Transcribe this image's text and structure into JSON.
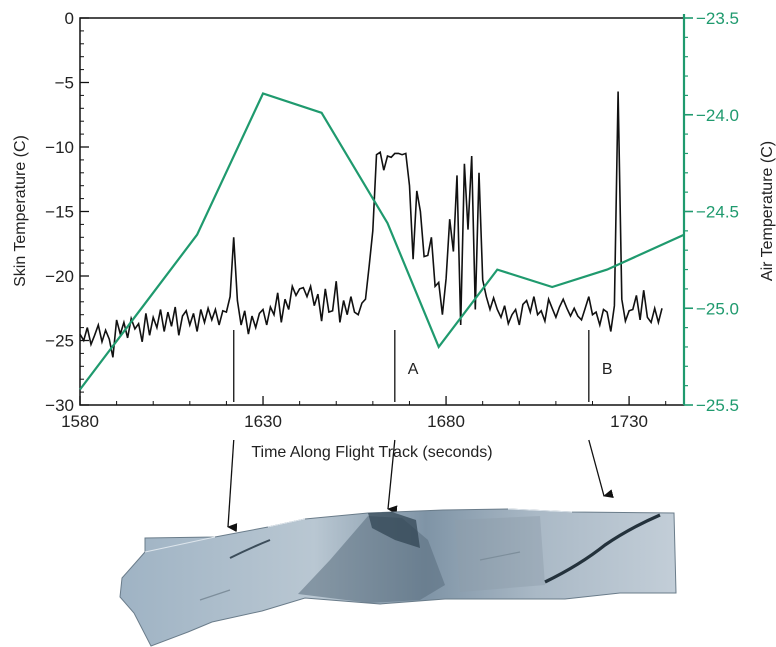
{
  "chart_data": {
    "type": "line",
    "xlabel": "Time Along Flight Track (seconds)",
    "ylabel": "Skin Temperature (C)",
    "y2label": "Air Temperature (C)",
    "xlim": [
      1580,
      1745
    ],
    "ylim": [
      -30,
      0
    ],
    "y2lim": [
      -25.5,
      -23.5
    ],
    "x_ticks": [
      "1580",
      "1630",
      "1680",
      "1730"
    ],
    "y_ticks": [
      "0",
      "−5",
      "−10",
      "−15",
      "−20",
      "−25",
      "−30"
    ],
    "y2_ticks": [
      "−23.5",
      "−24.0",
      "−24.5",
      "−25.0",
      "−25.5"
    ],
    "grid": false,
    "series": [
      {
        "axis": "left",
        "color": "#111111",
        "x": [
          1580,
          1581,
          1582,
          1583,
          1584,
          1585,
          1586,
          1587,
          1588,
          1589,
          1590,
          1591,
          1592,
          1593,
          1594,
          1595,
          1596,
          1597,
          1598,
          1599,
          1600,
          1601,
          1602,
          1603,
          1604,
          1605,
          1606,
          1607,
          1608,
          1609,
          1610,
          1611,
          1612,
          1613,
          1614,
          1615,
          1616,
          1617,
          1618,
          1619,
          1620,
          1621,
          1622,
          1623,
          1624,
          1625,
          1626,
          1627,
          1628,
          1629,
          1630,
          1631,
          1632,
          1633,
          1634,
          1635,
          1636,
          1637,
          1638,
          1639,
          1640,
          1641,
          1642,
          1643,
          1644,
          1645,
          1646,
          1647,
          1648,
          1649,
          1650,
          1651,
          1652,
          1653,
          1654,
          1655,
          1656,
          1657,
          1658,
          1659,
          1660,
          1661,
          1662,
          1663,
          1664,
          1665,
          1666,
          1667,
          1668,
          1669,
          1670,
          1671,
          1672,
          1673,
          1674,
          1675,
          1676,
          1677,
          1678,
          1679,
          1680,
          1681,
          1682,
          1683,
          1684,
          1685,
          1686,
          1687,
          1688,
          1689,
          1690,
          1691,
          1692,
          1693,
          1694,
          1695,
          1696,
          1697,
          1698,
          1699,
          1700,
          1701,
          1702,
          1703,
          1704,
          1705,
          1706,
          1707,
          1708,
          1709,
          1710,
          1711,
          1712,
          1713,
          1714,
          1715,
          1716,
          1717,
          1718,
          1719,
          1720,
          1721,
          1722,
          1723,
          1724,
          1725,
          1726,
          1727,
          1728,
          1729,
          1730,
          1731,
          1732,
          1733,
          1734,
          1735,
          1736,
          1737,
          1738,
          1739
        ],
        "values": [
          -24.5,
          -25.0,
          -24.0,
          -25.3,
          -24.6,
          -23.8,
          -25.1,
          -24.2,
          -24.9,
          -26.3,
          -23.4,
          -24.5,
          -23.6,
          -24.8,
          -23.3,
          -24.1,
          -23.7,
          -25.1,
          -22.9,
          -24.6,
          -23.2,
          -24.0,
          -22.6,
          -24.3,
          -22.8,
          -23.9,
          -22.4,
          -24.6,
          -23.1,
          -22.7,
          -23.8,
          -22.9,
          -24.3,
          -22.6,
          -23.6,
          -22.5,
          -23.4,
          -22.6,
          -23.8,
          -22.7,
          -22.8,
          -21.6,
          -17.0,
          -21.9,
          -23.8,
          -22.7,
          -24.5,
          -23.1,
          -24.0,
          -22.9,
          -22.6,
          -23.8,
          -22.4,
          -23.0,
          -21.3,
          -23.6,
          -21.8,
          -22.6,
          -20.8,
          -21.5,
          -21.0,
          -20.9,
          -21.6,
          -20.8,
          -22.3,
          -21.4,
          -23.5,
          -21.0,
          -22.8,
          -22.7,
          -20.4,
          -23.6,
          -21.9,
          -23.0,
          -21.6,
          -22.8,
          -23.0,
          -22.1,
          -21.8,
          -19.2,
          -16.5,
          -10.6,
          -10.4,
          -11.8,
          -10.7,
          -10.8,
          -10.5,
          -10.5,
          -10.6,
          -10.5,
          -13.0,
          -18.7,
          -13.4,
          -15.0,
          -18.5,
          -18.4,
          -17.0,
          -20.8,
          -20.5,
          -23.0,
          -20.2,
          -15.6,
          -18.1,
          -12.2,
          -23.8,
          -11.3,
          -16.4,
          -10.7,
          -22.6,
          -12.0,
          -20.3,
          -21.6,
          -22.6,
          -21.7,
          -22.6,
          -23.2,
          -22.3,
          -23.7,
          -23.0,
          -22.6,
          -23.8,
          -22.2,
          -21.9,
          -22.8,
          -21.6,
          -23.0,
          -22.7,
          -23.5,
          -21.8,
          -22.5,
          -23.2,
          -22.4,
          -21.8,
          -22.5,
          -23.1,
          -22.5,
          -23.1,
          -23.4,
          -22.5,
          -21.6,
          -23.0,
          -22.8,
          -23.8,
          -22.6,
          -22.8,
          -24.3,
          -22.3,
          -5.7,
          -21.8,
          -23.5,
          -22.7,
          -22.6,
          -21.5,
          -23.4,
          -21.1,
          -23.2,
          -23.6,
          -22.5,
          -23.6,
          -22.5
        ]
      },
      {
        "axis": "right",
        "color": "#1f9a6e",
        "x": [
          1580,
          1612,
          1630,
          1646,
          1664,
          1678,
          1694,
          1709,
          1724,
          1745
        ],
        "values": [
          -25.42,
          -24.62,
          -23.89,
          -23.99,
          -24.56,
          -25.2,
          -24.8,
          -24.89,
          -24.8,
          -24.62
        ]
      }
    ],
    "markers": [
      {
        "x": 1622,
        "label": ""
      },
      {
        "x": 1666,
        "label": "A"
      },
      {
        "x": 1719,
        "label": "B"
      }
    ]
  }
}
